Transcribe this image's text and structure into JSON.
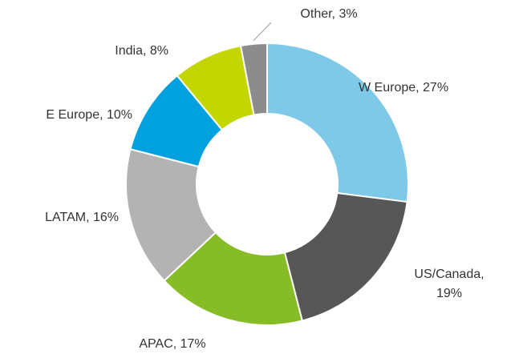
{
  "chart_data": {
    "type": "donut",
    "labels": [
      "W Europe, 27%",
      "US/Canada, 19%",
      "APAC, 17%",
      "LATAM, 16%",
      "E Europe, 10%",
      "India, 8%",
      "Other, 3%"
    ],
    "values": [
      27,
      19,
      17,
      16,
      10,
      8,
      3
    ],
    "colors": [
      "#7dc9e7",
      "#575757",
      "#86bc25",
      "#b3b3b3",
      "#00a1de",
      "#c4d600",
      "#8c8c8c"
    ]
  }
}
